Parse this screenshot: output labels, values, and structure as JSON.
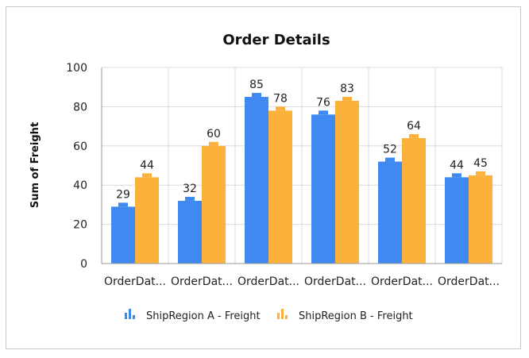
{
  "chart_data": {
    "type": "bar",
    "title": "Order Details",
    "xlabel": "",
    "ylabel": "Sum of Freight",
    "ylim": [
      0,
      100
    ],
    "yticks": [
      0,
      20,
      40,
      60,
      80,
      100
    ],
    "grid": true,
    "legend_position": "bottom",
    "categories": [
      "OrderDat...",
      "OrderDat...",
      "OrderDat...",
      "OrderDat...",
      "OrderDat...",
      "OrderDat..."
    ],
    "series": [
      {
        "name": "ShipRegion A - Freight",
        "color": "#3f8af0",
        "values": [
          29,
          32,
          85,
          76,
          52,
          44
        ]
      },
      {
        "name": "ShipRegion B - Freight",
        "color": "#fbb13c",
        "values": [
          44,
          60,
          78,
          83,
          64,
          45
        ]
      }
    ]
  }
}
